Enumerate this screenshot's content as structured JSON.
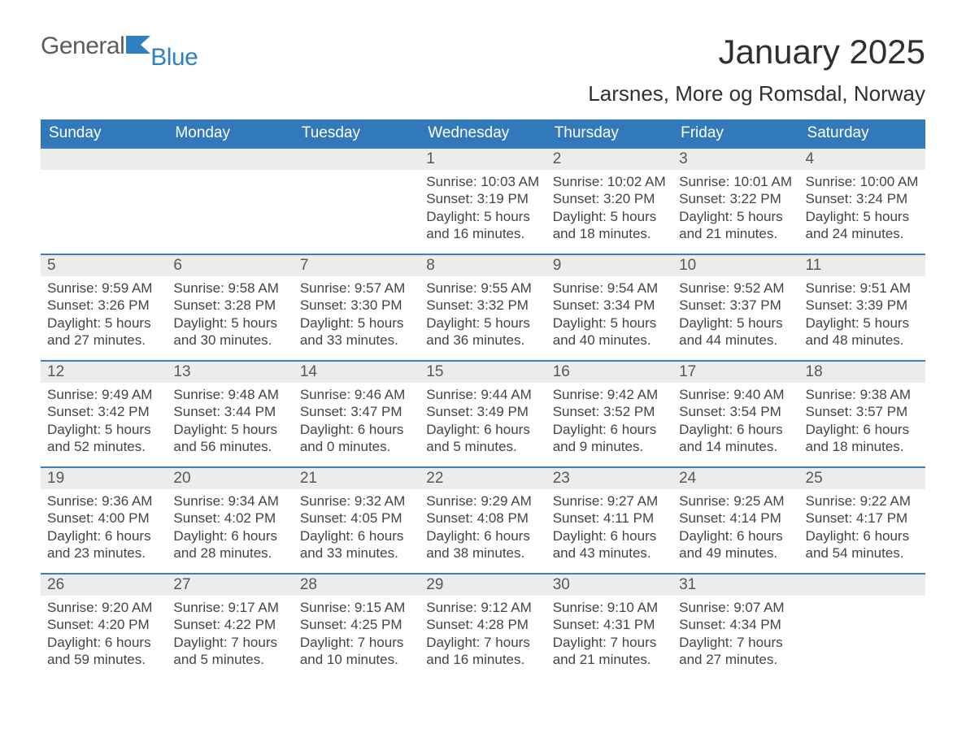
{
  "logo": {
    "general": "General",
    "blue": "Blue"
  },
  "title": "January 2025",
  "location": "Larsnes, More og Romsdal, Norway",
  "colors": {
    "header_bg": "#3279bc",
    "header_text": "#ffffff",
    "daynum_bg": "#ececec",
    "daynum_text": "#585858",
    "body_text": "#444444",
    "row_border": "#3e7fbc",
    "logo_blue": "#2f80c0",
    "logo_gray": "#5c5c5c",
    "page_bg": "#ffffff"
  },
  "typography": {
    "title_fontsize": 42,
    "location_fontsize": 26,
    "dayheader_fontsize": 19,
    "daynum_fontsize": 19,
    "body_fontsize": 17,
    "logo_fontsize": 30
  },
  "day_headers": [
    "Sunday",
    "Monday",
    "Tuesday",
    "Wednesday",
    "Thursday",
    "Friday",
    "Saturday"
  ],
  "weeks": [
    [
      {
        "day": "",
        "sunrise": "",
        "sunset": "",
        "daylight1": "",
        "daylight2": ""
      },
      {
        "day": "",
        "sunrise": "",
        "sunset": "",
        "daylight1": "",
        "daylight2": ""
      },
      {
        "day": "",
        "sunrise": "",
        "sunset": "",
        "daylight1": "",
        "daylight2": ""
      },
      {
        "day": "1",
        "sunrise": "Sunrise: 10:03 AM",
        "sunset": "Sunset: 3:19 PM",
        "daylight1": "Daylight: 5 hours",
        "daylight2": "and 16 minutes."
      },
      {
        "day": "2",
        "sunrise": "Sunrise: 10:02 AM",
        "sunset": "Sunset: 3:20 PM",
        "daylight1": "Daylight: 5 hours",
        "daylight2": "and 18 minutes."
      },
      {
        "day": "3",
        "sunrise": "Sunrise: 10:01 AM",
        "sunset": "Sunset: 3:22 PM",
        "daylight1": "Daylight: 5 hours",
        "daylight2": "and 21 minutes."
      },
      {
        "day": "4",
        "sunrise": "Sunrise: 10:00 AM",
        "sunset": "Sunset: 3:24 PM",
        "daylight1": "Daylight: 5 hours",
        "daylight2": "and 24 minutes."
      }
    ],
    [
      {
        "day": "5",
        "sunrise": "Sunrise: 9:59 AM",
        "sunset": "Sunset: 3:26 PM",
        "daylight1": "Daylight: 5 hours",
        "daylight2": "and 27 minutes."
      },
      {
        "day": "6",
        "sunrise": "Sunrise: 9:58 AM",
        "sunset": "Sunset: 3:28 PM",
        "daylight1": "Daylight: 5 hours",
        "daylight2": "and 30 minutes."
      },
      {
        "day": "7",
        "sunrise": "Sunrise: 9:57 AM",
        "sunset": "Sunset: 3:30 PM",
        "daylight1": "Daylight: 5 hours",
        "daylight2": "and 33 minutes."
      },
      {
        "day": "8",
        "sunrise": "Sunrise: 9:55 AM",
        "sunset": "Sunset: 3:32 PM",
        "daylight1": "Daylight: 5 hours",
        "daylight2": "and 36 minutes."
      },
      {
        "day": "9",
        "sunrise": "Sunrise: 9:54 AM",
        "sunset": "Sunset: 3:34 PM",
        "daylight1": "Daylight: 5 hours",
        "daylight2": "and 40 minutes."
      },
      {
        "day": "10",
        "sunrise": "Sunrise: 9:52 AM",
        "sunset": "Sunset: 3:37 PM",
        "daylight1": "Daylight: 5 hours",
        "daylight2": "and 44 minutes."
      },
      {
        "day": "11",
        "sunrise": "Sunrise: 9:51 AM",
        "sunset": "Sunset: 3:39 PM",
        "daylight1": "Daylight: 5 hours",
        "daylight2": "and 48 minutes."
      }
    ],
    [
      {
        "day": "12",
        "sunrise": "Sunrise: 9:49 AM",
        "sunset": "Sunset: 3:42 PM",
        "daylight1": "Daylight: 5 hours",
        "daylight2": "and 52 minutes."
      },
      {
        "day": "13",
        "sunrise": "Sunrise: 9:48 AM",
        "sunset": "Sunset: 3:44 PM",
        "daylight1": "Daylight: 5 hours",
        "daylight2": "and 56 minutes."
      },
      {
        "day": "14",
        "sunrise": "Sunrise: 9:46 AM",
        "sunset": "Sunset: 3:47 PM",
        "daylight1": "Daylight: 6 hours",
        "daylight2": "and 0 minutes."
      },
      {
        "day": "15",
        "sunrise": "Sunrise: 9:44 AM",
        "sunset": "Sunset: 3:49 PM",
        "daylight1": "Daylight: 6 hours",
        "daylight2": "and 5 minutes."
      },
      {
        "day": "16",
        "sunrise": "Sunrise: 9:42 AM",
        "sunset": "Sunset: 3:52 PM",
        "daylight1": "Daylight: 6 hours",
        "daylight2": "and 9 minutes."
      },
      {
        "day": "17",
        "sunrise": "Sunrise: 9:40 AM",
        "sunset": "Sunset: 3:54 PM",
        "daylight1": "Daylight: 6 hours",
        "daylight2": "and 14 minutes."
      },
      {
        "day": "18",
        "sunrise": "Sunrise: 9:38 AM",
        "sunset": "Sunset: 3:57 PM",
        "daylight1": "Daylight: 6 hours",
        "daylight2": "and 18 minutes."
      }
    ],
    [
      {
        "day": "19",
        "sunrise": "Sunrise: 9:36 AM",
        "sunset": "Sunset: 4:00 PM",
        "daylight1": "Daylight: 6 hours",
        "daylight2": "and 23 minutes."
      },
      {
        "day": "20",
        "sunrise": "Sunrise: 9:34 AM",
        "sunset": "Sunset: 4:02 PM",
        "daylight1": "Daylight: 6 hours",
        "daylight2": "and 28 minutes."
      },
      {
        "day": "21",
        "sunrise": "Sunrise: 9:32 AM",
        "sunset": "Sunset: 4:05 PM",
        "daylight1": "Daylight: 6 hours",
        "daylight2": "and 33 minutes."
      },
      {
        "day": "22",
        "sunrise": "Sunrise: 9:29 AM",
        "sunset": "Sunset: 4:08 PM",
        "daylight1": "Daylight: 6 hours",
        "daylight2": "and 38 minutes."
      },
      {
        "day": "23",
        "sunrise": "Sunrise: 9:27 AM",
        "sunset": "Sunset: 4:11 PM",
        "daylight1": "Daylight: 6 hours",
        "daylight2": "and 43 minutes."
      },
      {
        "day": "24",
        "sunrise": "Sunrise: 9:25 AM",
        "sunset": "Sunset: 4:14 PM",
        "daylight1": "Daylight: 6 hours",
        "daylight2": "and 49 minutes."
      },
      {
        "day": "25",
        "sunrise": "Sunrise: 9:22 AM",
        "sunset": "Sunset: 4:17 PM",
        "daylight1": "Daylight: 6 hours",
        "daylight2": "and 54 minutes."
      }
    ],
    [
      {
        "day": "26",
        "sunrise": "Sunrise: 9:20 AM",
        "sunset": "Sunset: 4:20 PM",
        "daylight1": "Daylight: 6 hours",
        "daylight2": "and 59 minutes."
      },
      {
        "day": "27",
        "sunrise": "Sunrise: 9:17 AM",
        "sunset": "Sunset: 4:22 PM",
        "daylight1": "Daylight: 7 hours",
        "daylight2": "and 5 minutes."
      },
      {
        "day": "28",
        "sunrise": "Sunrise: 9:15 AM",
        "sunset": "Sunset: 4:25 PM",
        "daylight1": "Daylight: 7 hours",
        "daylight2": "and 10 minutes."
      },
      {
        "day": "29",
        "sunrise": "Sunrise: 9:12 AM",
        "sunset": "Sunset: 4:28 PM",
        "daylight1": "Daylight: 7 hours",
        "daylight2": "and 16 minutes."
      },
      {
        "day": "30",
        "sunrise": "Sunrise: 9:10 AM",
        "sunset": "Sunset: 4:31 PM",
        "daylight1": "Daylight: 7 hours",
        "daylight2": "and 21 minutes."
      },
      {
        "day": "31",
        "sunrise": "Sunrise: 9:07 AM",
        "sunset": "Sunset: 4:34 PM",
        "daylight1": "Daylight: 7 hours",
        "daylight2": "and 27 minutes."
      },
      {
        "day": "",
        "sunrise": "",
        "sunset": "",
        "daylight1": "",
        "daylight2": ""
      }
    ]
  ]
}
